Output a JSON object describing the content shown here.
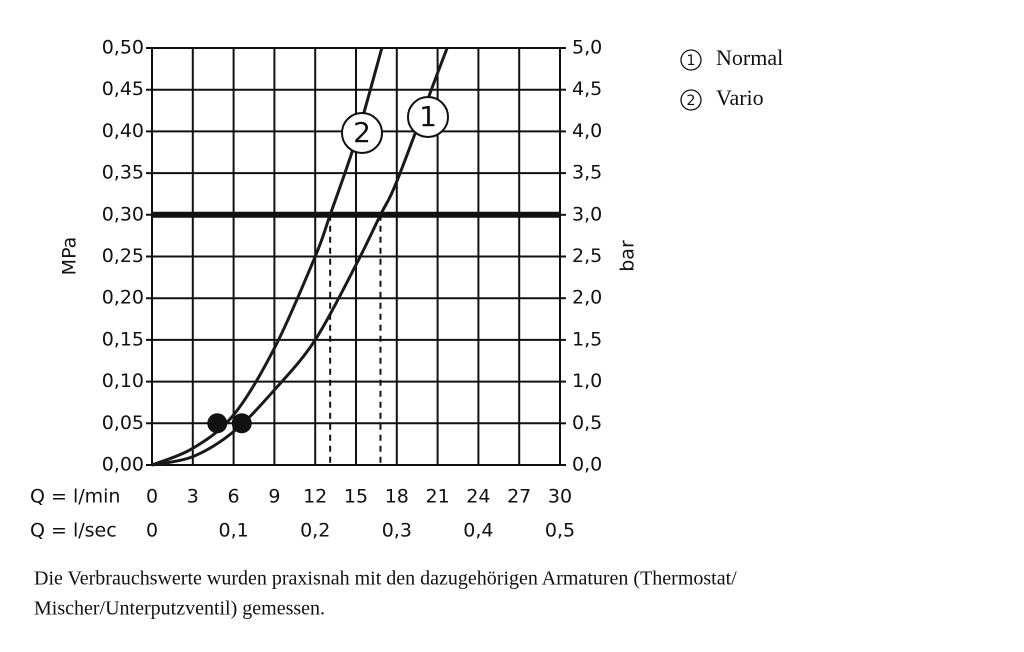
{
  "chart_data": {
    "type": "line",
    "y_label": "MPa",
    "y2_label": "bar",
    "x_label": "Q = l/min",
    "x2_label": "Q = l/sec",
    "xlim": [
      0,
      30
    ],
    "xticks": [
      0,
      3,
      6,
      9,
      12,
      15,
      18,
      21,
      24,
      27,
      30
    ],
    "x2lim": [
      0,
      0.5
    ],
    "x2ticks": [
      0,
      {
        "value": 0.1,
        "label": "0,1"
      },
      {
        "value": 0.2,
        "label": "0,2"
      },
      {
        "value": 0.3,
        "label": "0,3"
      },
      {
        "value": 0.4,
        "label": "0,4"
      },
      {
        "value": 0.5,
        "label": "0,5"
      }
    ],
    "ylim": [
      0,
      0.5
    ],
    "yticks": [
      {
        "value": 0,
        "label": "0,00"
      },
      {
        "value": 0.05,
        "label": "0,05"
      },
      {
        "value": 0.1,
        "label": "0,10"
      },
      {
        "value": 0.15,
        "label": "0,15"
      },
      {
        "value": 0.2,
        "label": "0,20"
      },
      {
        "value": 0.25,
        "label": "0,25"
      },
      {
        "value": 0.3,
        "label": "0,30"
      },
      {
        "value": 0.35,
        "label": "0,35"
      },
      {
        "value": 0.4,
        "label": "0,40"
      },
      {
        "value": 0.45,
        "label": "0,45"
      },
      {
        "value": 0.5,
        "label": "0,50"
      }
    ],
    "y2lim": [
      0,
      5
    ],
    "y2ticks": [
      {
        "value": 0,
        "label": "0,0"
      },
      {
        "value": 0.5,
        "label": "0,5"
      },
      {
        "value": 1,
        "label": "1,0"
      },
      {
        "value": 1.5,
        "label": "1,5"
      },
      {
        "value": 2,
        "label": "2,0"
      },
      {
        "value": 2.5,
        "label": "2,5"
      },
      {
        "value": 3,
        "label": "3,0"
      },
      {
        "value": 3.5,
        "label": "3,5"
      },
      {
        "value": 4,
        "label": "4,0"
      },
      {
        "value": 4.5,
        "label": "4,5"
      },
      {
        "value": 5,
        "label": "5,0"
      }
    ],
    "grid": true,
    "reference_line": 0.3,
    "series": [
      {
        "name": "Normal",
        "label": "1",
        "color": "#1a1a1a",
        "x": [
          0,
          3,
          6,
          9,
          12,
          15,
          16.8,
          18,
          21,
          21.7
        ],
        "values": [
          0,
          0.01,
          0.04,
          0.09,
          0.15,
          0.24,
          0.3,
          0.34,
          0.47,
          0.5
        ],
        "point": {
          "x": 6.6,
          "y": 0.05
        }
      },
      {
        "name": "Vario",
        "label": "2",
        "color": "#1a1a1a",
        "x": [
          0,
          3,
          6,
          9,
          12,
          13.1,
          15,
          16.9
        ],
        "values": [
          0,
          0.02,
          0.06,
          0.14,
          0.25,
          0.3,
          0.39,
          0.5
        ],
        "point": {
          "x": 4.8,
          "y": 0.05
        }
      }
    ],
    "caption": [
      "Die Verbrauchswerte wurden praxisnah mit den dazugehörigen Armaturen (Thermostat/",
      "Mischer/Unterputzventil) gemessen."
    ]
  }
}
